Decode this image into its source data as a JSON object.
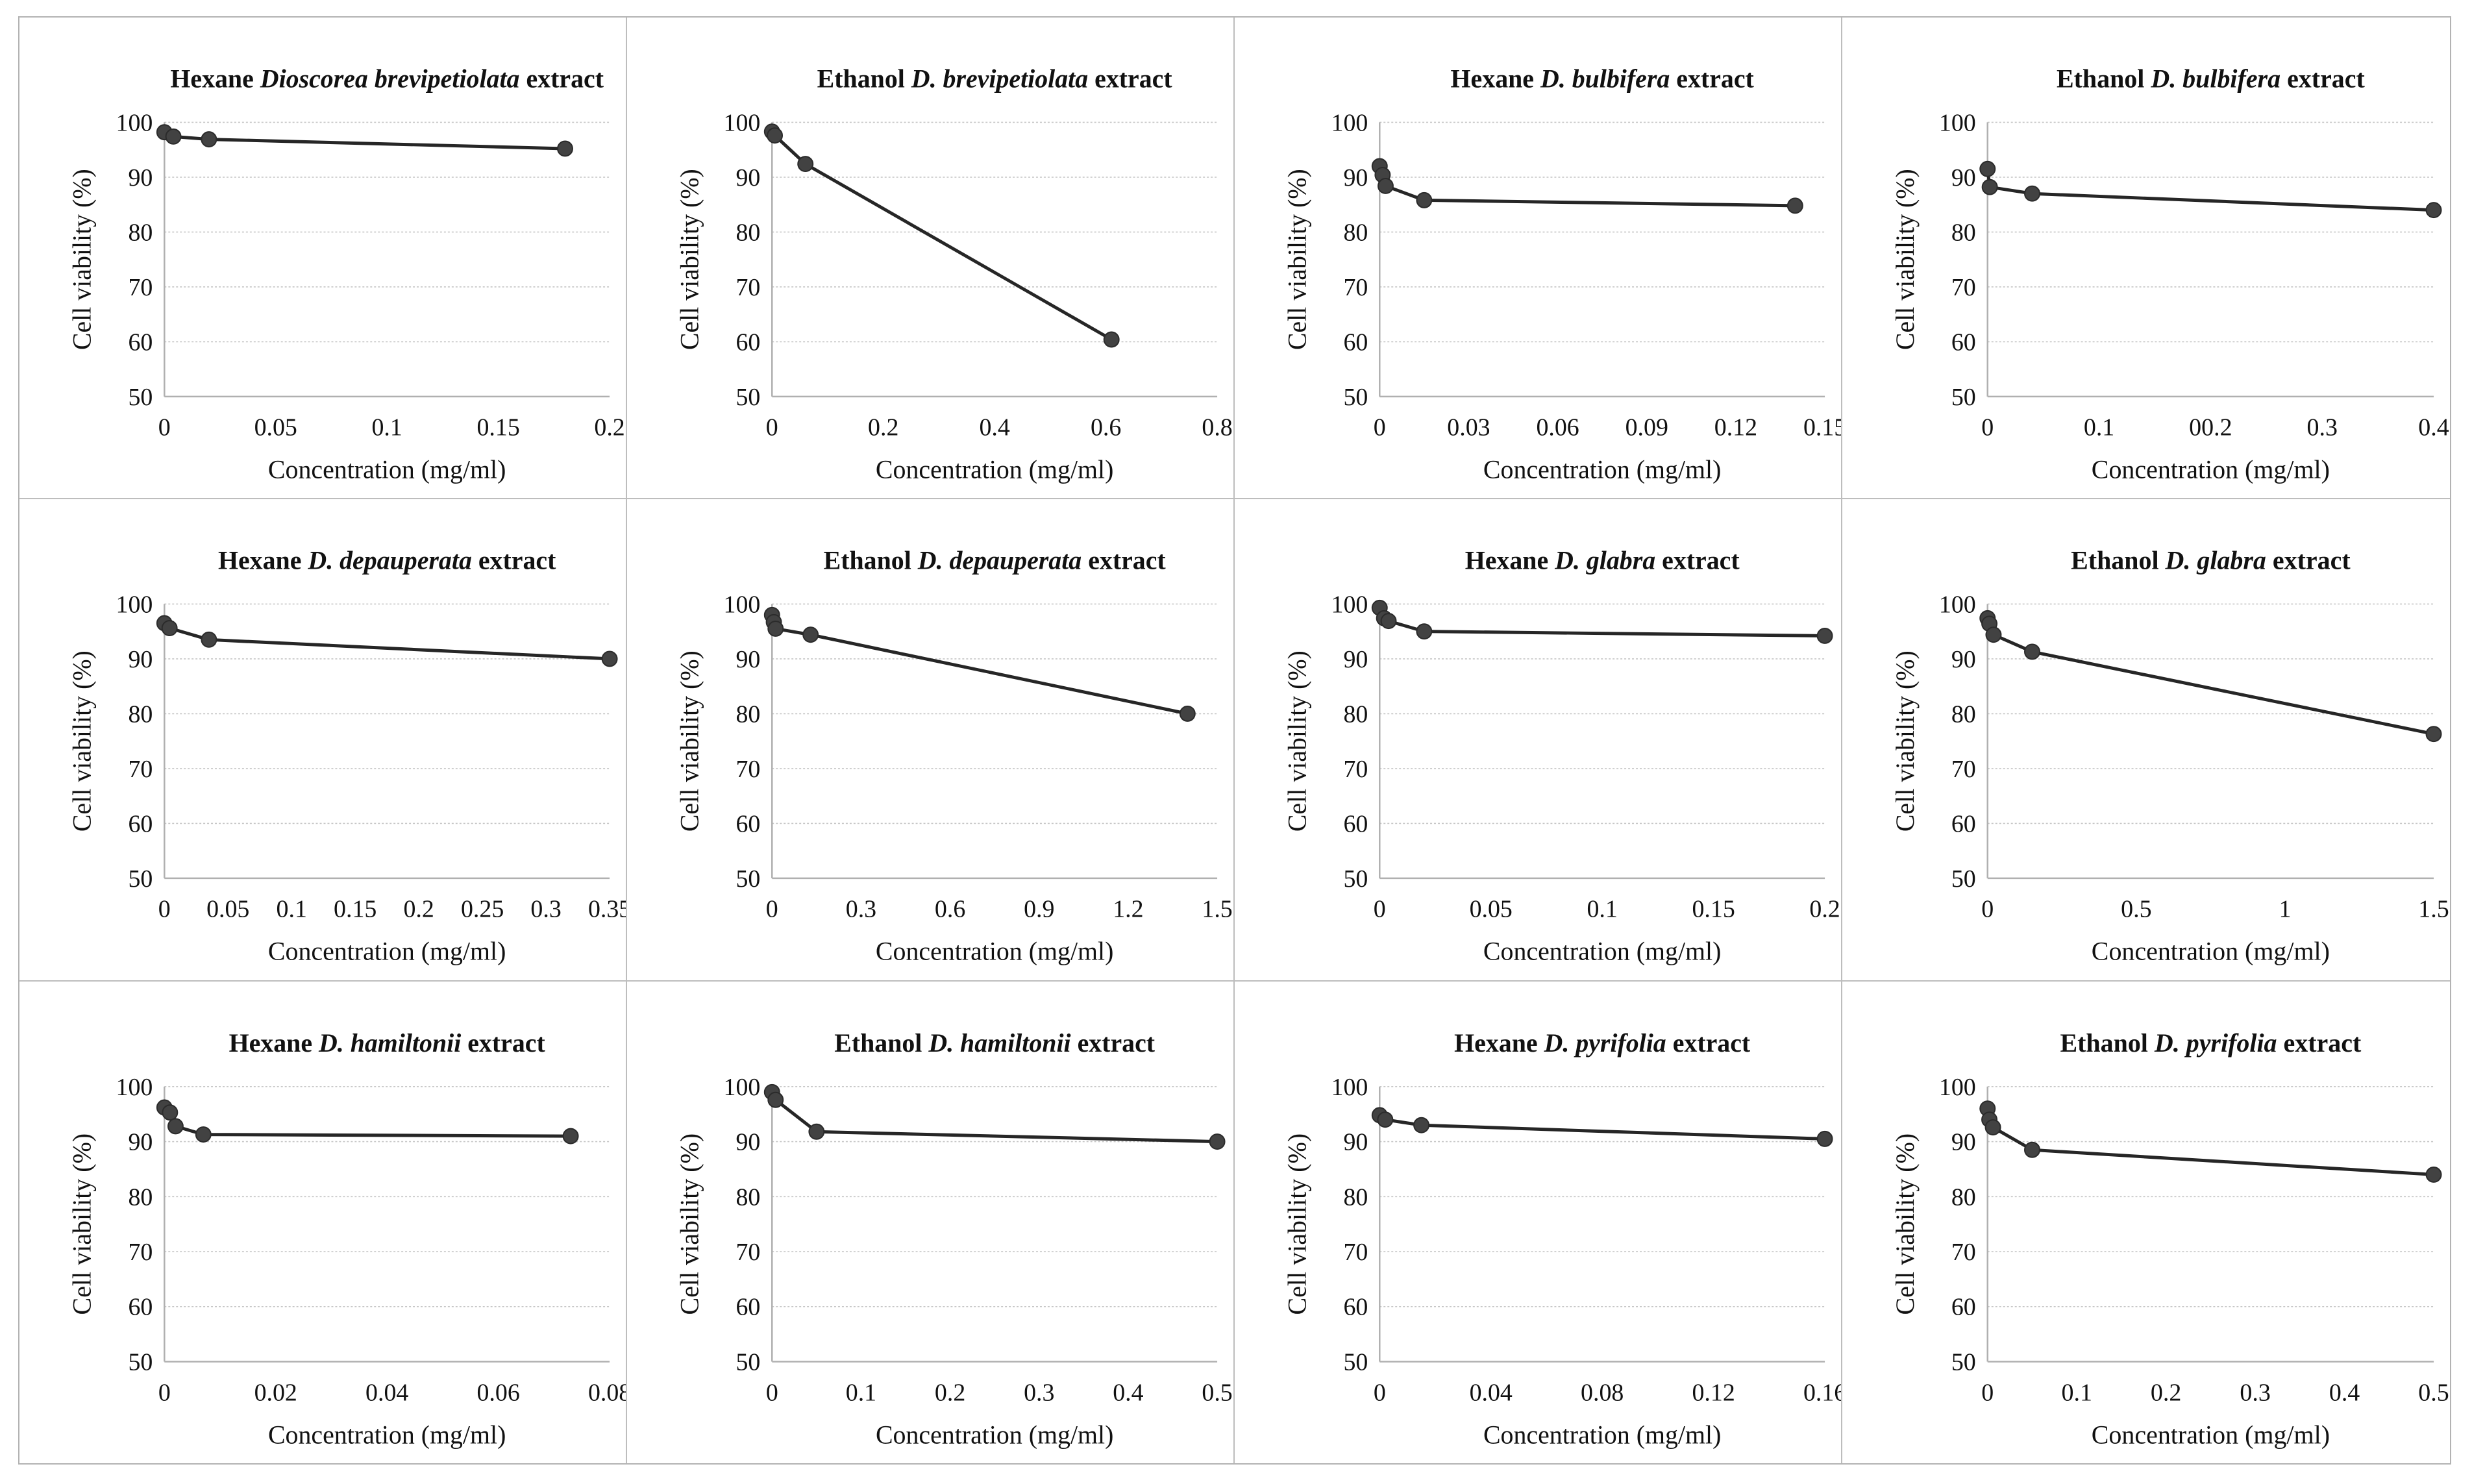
{
  "figure": {
    "ylabel": "Cell viability (%)",
    "xlabel": "Concentration (mg/ml)",
    "ylim": [
      50,
      100
    ],
    "y_ticks": [
      50,
      60,
      70,
      80,
      90,
      100
    ],
    "grid": "horizontal",
    "legend": "none",
    "colors": {
      "marker_fill": "#424242",
      "marker_stroke": "#2b2b2b",
      "series_line": "#262626",
      "gridline": "#c6c6c6",
      "axis_line": "#b0b0b0",
      "text": "#111111",
      "cell_border": "#bdbdbd",
      "outer_border": "#b3b3b3",
      "background": "#ffffff"
    }
  },
  "chart_data": [
    {
      "type": "line",
      "title_prefix": "Hexane ",
      "title_species": "Dioscorea brevipetiolata",
      "title_suffix": " extract",
      "xlim": [
        0,
        0.2
      ],
      "x_tick_values": [
        0,
        0.05,
        0.1,
        0.15,
        0.2
      ],
      "x_tick_labels": [
        "0",
        "0.05",
        "0.1",
        "0.15",
        "0.2"
      ],
      "points": [
        [
          0,
          98.2
        ],
        [
          0.004,
          97.4
        ],
        [
          0.02,
          96.9
        ],
        [
          0.18,
          95.2
        ]
      ]
    },
    {
      "type": "line",
      "title_prefix": "Ethanol ",
      "title_species": "D. brevipetiolata",
      "title_suffix": " extract",
      "xlim": [
        0,
        0.8
      ],
      "x_tick_values": [
        0,
        0.2,
        0.4,
        0.6,
        0.8
      ],
      "x_tick_labels": [
        "0",
        "0.2",
        "0.4",
        "0.6",
        "0.8"
      ],
      "points": [
        [
          0,
          98.3
        ],
        [
          0.005,
          97.6
        ],
        [
          0.06,
          92.4
        ],
        [
          0.61,
          60.4
        ]
      ]
    },
    {
      "type": "line",
      "title_prefix": "Hexane ",
      "title_species": "D. bulbifera",
      "title_suffix": " extract",
      "xlim": [
        0,
        0.15
      ],
      "x_tick_values": [
        0,
        0.03,
        0.06,
        0.09,
        0.12,
        0.15
      ],
      "x_tick_labels": [
        "0",
        "0.03",
        "0.06",
        "0.09",
        "0.12",
        "0.15"
      ],
      "points": [
        [
          0,
          92.0
        ],
        [
          0.001,
          90.4
        ],
        [
          0.002,
          88.4
        ],
        [
          0.015,
          85.8
        ],
        [
          0.14,
          84.8
        ]
      ]
    },
    {
      "type": "line",
      "title_prefix": "Ethanol ",
      "title_species": "D. bulbifera",
      "title_suffix": " extract",
      "xlim": [
        0,
        0.4
      ],
      "x_tick_values": [
        0,
        0.1,
        0.2,
        0.3,
        0.4
      ],
      "x_tick_labels": [
        "0",
        "0.1",
        "00.2",
        "0.3",
        "0.4"
      ],
      "points": [
        [
          0,
          91.5
        ],
        [
          0.002,
          88.2
        ],
        [
          0.04,
          87.0
        ],
        [
          0.4,
          84.0
        ]
      ]
    },
    {
      "type": "line",
      "title_prefix": "Hexane ",
      "title_species": "D. depauperata",
      "title_suffix": " extract",
      "xlim": [
        0,
        0.35
      ],
      "x_tick_values": [
        0,
        0.05,
        0.1,
        0.15,
        0.2,
        0.25,
        0.3,
        0.35
      ],
      "x_tick_labels": [
        "0",
        "0.05",
        "0.1",
        "0.15",
        "0.2",
        "0.25",
        "0.3",
        "0.35"
      ],
      "points": [
        [
          0,
          96.5
        ],
        [
          0.004,
          95.6
        ],
        [
          0.035,
          93.5
        ],
        [
          0.35,
          90.0
        ]
      ]
    },
    {
      "type": "line",
      "title_prefix": "Ethanol ",
      "title_species": "D. depauperata",
      "title_suffix": " extract",
      "xlim": [
        0,
        1.5
      ],
      "x_tick_values": [
        0,
        0.3,
        0.6,
        0.9,
        1.2,
        1.5
      ],
      "x_tick_labels": [
        "0",
        "0.3",
        "0.6",
        "0.9",
        "1.2",
        "1.5"
      ],
      "points": [
        [
          0,
          98.0
        ],
        [
          0.006,
          96.7
        ],
        [
          0.012,
          95.5
        ],
        [
          0.13,
          94.4
        ],
        [
          1.4,
          80.0
        ]
      ]
    },
    {
      "type": "line",
      "title_prefix": "Hexane ",
      "title_species": "D. glabra",
      "title_suffix": " extract",
      "xlim": [
        0,
        0.2
      ],
      "x_tick_values": [
        0,
        0.05,
        0.1,
        0.15,
        0.2
      ],
      "x_tick_labels": [
        "0",
        "0.05",
        "0.1",
        "0.15",
        "0.2"
      ],
      "points": [
        [
          0,
          99.3
        ],
        [
          0.002,
          97.4
        ],
        [
          0.004,
          96.9
        ],
        [
          0.02,
          95.0
        ],
        [
          0.2,
          94.2
        ]
      ]
    },
    {
      "type": "line",
      "title_prefix": "Ethanol ",
      "title_species": "D. glabra",
      "title_suffix": " extract",
      "xlim": [
        0,
        1.5
      ],
      "x_tick_values": [
        0,
        0.5,
        1,
        1.5
      ],
      "x_tick_labels": [
        "0",
        "0.5",
        "1",
        "1.5"
      ],
      "points": [
        [
          0,
          97.4
        ],
        [
          0.006,
          96.4
        ],
        [
          0.02,
          94.4
        ],
        [
          0.15,
          91.3
        ],
        [
          1.5,
          76.3
        ]
      ]
    },
    {
      "type": "line",
      "title_prefix": "Hexane ",
      "title_species": "D. hamiltonii",
      "title_suffix": " extract",
      "xlim": [
        0,
        0.08
      ],
      "x_tick_values": [
        0,
        0.02,
        0.04,
        0.06,
        0.08
      ],
      "x_tick_labels": [
        "0",
        "0.02",
        "0.04",
        "0.06",
        "0.08"
      ],
      "points": [
        [
          0,
          96.2
        ],
        [
          0.001,
          95.3
        ],
        [
          0.002,
          92.8
        ],
        [
          0.007,
          91.3
        ],
        [
          0.073,
          91.0
        ]
      ]
    },
    {
      "type": "line",
      "title_prefix": "Ethanol ",
      "title_species": "D. hamiltonii",
      "title_suffix": " extract",
      "xlim": [
        0,
        0.5
      ],
      "x_tick_values": [
        0,
        0.1,
        0.2,
        0.3,
        0.4,
        0.5
      ],
      "x_tick_labels": [
        "0",
        "0.1",
        "0.2",
        "0.3",
        "0.4",
        "0.5"
      ],
      "points": [
        [
          0,
          99.0
        ],
        [
          0.004,
          97.6
        ],
        [
          0.05,
          91.8
        ],
        [
          0.5,
          90.0
        ]
      ]
    },
    {
      "type": "line",
      "title_prefix": "Hexane ",
      "title_species": "D. pyrifolia",
      "title_suffix": " extract",
      "xlim": [
        0,
        0.16
      ],
      "x_tick_values": [
        0,
        0.04,
        0.08,
        0.12,
        0.16
      ],
      "x_tick_labels": [
        "0",
        "0.04",
        "0.08",
        "0.12",
        "0.16"
      ],
      "points": [
        [
          0,
          94.8
        ],
        [
          0.002,
          94.0
        ],
        [
          0.015,
          93.0
        ],
        [
          0.16,
          90.5
        ]
      ]
    },
    {
      "type": "line",
      "title_prefix": "Ethanol ",
      "title_species": "D. pyrifolia",
      "title_suffix": " extract",
      "xlim": [
        0,
        0.5
      ],
      "x_tick_values": [
        0,
        0.1,
        0.2,
        0.3,
        0.4,
        0.5
      ],
      "x_tick_labels": [
        "0",
        "0.1",
        "0.2",
        "0.3",
        "0.4",
        "0.5"
      ],
      "points": [
        [
          0,
          96.0
        ],
        [
          0.002,
          94.0
        ],
        [
          0.006,
          92.6
        ],
        [
          0.05,
          88.5
        ],
        [
          0.5,
          84.0
        ]
      ]
    }
  ]
}
